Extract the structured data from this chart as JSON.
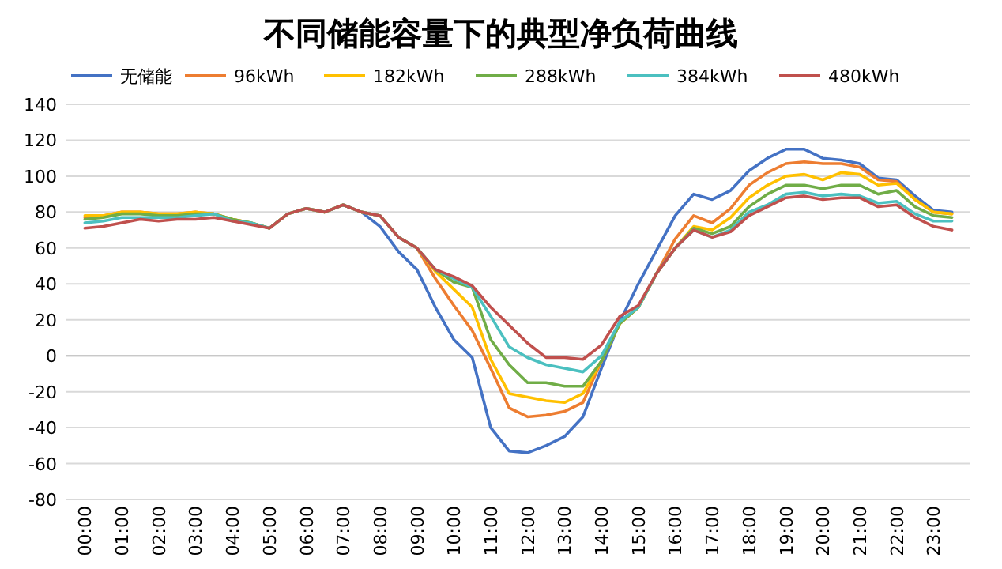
{
  "chart_data": {
    "type": "line",
    "title": "不同储能容量下的典型净负荷曲线",
    "legend": "top",
    "grid": "y",
    "marker": "none",
    "line_style": "solid",
    "x": [
      0,
      0.5,
      1,
      1.5,
      2,
      2.5,
      3,
      3.5,
      4,
      4.5,
      5,
      5.5,
      6,
      6.5,
      7,
      7.5,
      8,
      8.5,
      9,
      9.5,
      10,
      10.5,
      11,
      11.5,
      12,
      12.5,
      13,
      13.5,
      14,
      14.5,
      15,
      15.5,
      16,
      16.5,
      17,
      17.5,
      18,
      18.5,
      19,
      19.5,
      20,
      20.5,
      21,
      21.5,
      22,
      22.5,
      23,
      23.5
    ],
    "xlim": [
      -0.5,
      24
    ],
    "xticks": [
      {
        "value": 0,
        "label": "00:00"
      },
      {
        "value": 1,
        "label": "01:00"
      },
      {
        "value": 2,
        "label": "02:00"
      },
      {
        "value": 3,
        "label": "03:00"
      },
      {
        "value": 4,
        "label": "04:00"
      },
      {
        "value": 5,
        "label": "05:00"
      },
      {
        "value": 6,
        "label": "06:00"
      },
      {
        "value": 7,
        "label": "07:00"
      },
      {
        "value": 8,
        "label": "08:00"
      },
      {
        "value": 9,
        "label": "09:00"
      },
      {
        "value": 10,
        "label": "10:00"
      },
      {
        "value": 11,
        "label": "11:00"
      },
      {
        "value": 12,
        "label": "12:00"
      },
      {
        "value": 13,
        "label": "13:00"
      },
      {
        "value": 14,
        "label": "14:00"
      },
      {
        "value": 15,
        "label": "15:00"
      },
      {
        "value": 16,
        "label": "16:00"
      },
      {
        "value": 17,
        "label": "17:00"
      },
      {
        "value": 18,
        "label": "18:00"
      },
      {
        "value": 19,
        "label": "19:00"
      },
      {
        "value": 20,
        "label": "20:00"
      },
      {
        "value": 21,
        "label": "21:00"
      },
      {
        "value": 22,
        "label": "22:00"
      },
      {
        "value": 23,
        "label": "23:00"
      }
    ],
    "ylim": [
      -80,
      140
    ],
    "yticks": [
      -80,
      -60,
      -40,
      -20,
      0,
      20,
      40,
      60,
      80,
      100,
      120,
      140
    ],
    "series": [
      {
        "name": "无储能",
        "color": "#4472c4",
        "values": [
          null,
          null,
          null,
          null,
          null,
          null,
          null,
          null,
          null,
          null,
          null,
          null,
          null,
          null,
          84,
          80,
          72,
          58,
          48,
          27,
          9,
          -1,
          -40,
          -53,
          -54,
          -50,
          -45,
          -34,
          -7,
          19,
          40,
          59,
          78,
          90,
          87,
          92,
          103,
          110,
          115,
          115,
          110,
          109,
          107,
          99,
          98,
          89,
          81,
          80
        ]
      },
      {
        "name": "96kWh",
        "color": "#ed7d31",
        "values": [
          77,
          78,
          80,
          80,
          79,
          79,
          80,
          79,
          76,
          74,
          71,
          79,
          82,
          80,
          84,
          80,
          78,
          66,
          60,
          43,
          28,
          14,
          -7,
          -29,
          -34,
          -33,
          -31,
          -26,
          -3,
          18,
          27,
          46,
          65,
          78,
          74,
          82,
          95,
          102,
          107,
          108,
          107,
          107,
          105,
          98,
          97,
          87,
          80,
          79
        ]
      },
      {
        "name": "182kWh",
        "color": "#ffc000",
        "values": [
          78,
          78,
          80,
          80,
          79,
          79,
          80,
          79,
          76,
          74,
          71,
          79,
          82,
          80,
          84,
          80,
          78,
          66,
          60,
          47,
          37,
          27,
          -2,
          -21,
          -23,
          -25,
          -26,
          -21,
          -3,
          18,
          27,
          46,
          60,
          72,
          70,
          77,
          88,
          95,
          100,
          101,
          98,
          102,
          101,
          95,
          96,
          87,
          80,
          79
        ]
      },
      {
        "name": "288kWh",
        "color": "#70ad47",
        "values": [
          76,
          77,
          79,
          79,
          78,
          78,
          79,
          79,
          76,
          74,
          71,
          79,
          82,
          80,
          84,
          80,
          78,
          66,
          60,
          48,
          41,
          38,
          9,
          -5,
          -15,
          -15,
          -17,
          -17,
          -3,
          18,
          27,
          46,
          60,
          71,
          68,
          72,
          83,
          90,
          95,
          95,
          93,
          95,
          95,
          90,
          92,
          83,
          78,
          77
        ]
      },
      {
        "name": "384kWh",
        "color": "#4bc0c0",
        "values": [
          74,
          75,
          77,
          77,
          77,
          77,
          78,
          79,
          75,
          74,
          71,
          79,
          82,
          80,
          84,
          80,
          78,
          66,
          60,
          48,
          43,
          38,
          22,
          5,
          -1,
          -5,
          -7,
          -9,
          0,
          19,
          27,
          46,
          60,
          70,
          66,
          70,
          80,
          84,
          90,
          91,
          89,
          90,
          89,
          85,
          86,
          79,
          75,
          75
        ]
      },
      {
        "name": "480kWh",
        "color": "#c0504d",
        "values": [
          71,
          72,
          74,
          76,
          75,
          76,
          76,
          77,
          75,
          73,
          71,
          79,
          82,
          80,
          84,
          80,
          78,
          66,
          60,
          48,
          44,
          39,
          27,
          17,
          7,
          -1,
          -1,
          -2,
          6,
          22,
          28,
          46,
          60,
          70,
          66,
          69,
          78,
          83,
          88,
          89,
          87,
          88,
          88,
          83,
          84,
          77,
          72,
          70
        ]
      }
    ]
  }
}
